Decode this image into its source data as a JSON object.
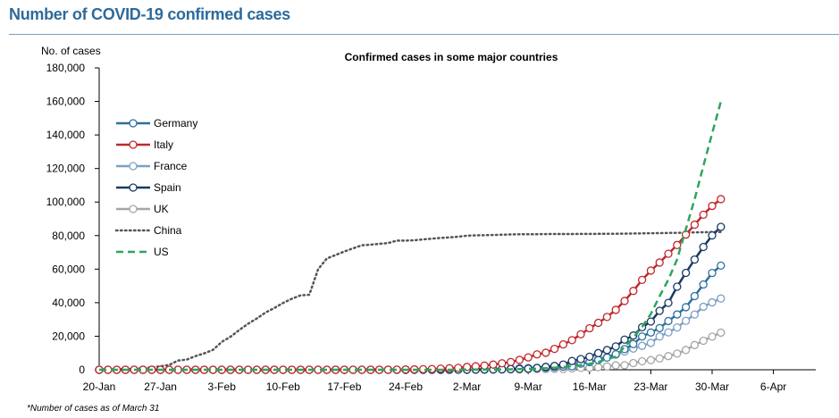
{
  "header": {
    "title": "Number of COVID-19 confirmed cases"
  },
  "footnote": "*Number of cases as of March 31",
  "chart_data": {
    "type": "line",
    "title": "Confirmed cases in some major countries",
    "ylabel": "No. of cases",
    "xlabel": "",
    "x_start": "20-Jan",
    "x_step": "1 day",
    "ylim": [
      0,
      180000
    ],
    "y_ticks": [
      "0",
      "20,000",
      "40,000",
      "60,000",
      "80,000",
      "100,000",
      "120,000",
      "140,000",
      "160,000",
      "180,000"
    ],
    "x_ticks": [
      "20-Jan",
      "27-Jan",
      "3-Feb",
      "10-Feb",
      "17-Feb",
      "24-Feb",
      "2-Mar",
      "9-Mar",
      "16-Mar",
      "23-Mar",
      "30-Mar",
      "6-Apr"
    ],
    "grid": false,
    "legend_position": "top-left",
    "series": [
      {
        "name": "Germany",
        "color": "#2e6f9e",
        "style": "solid-markers",
        "values": [
          0,
          0,
          0,
          0,
          0,
          0,
          0,
          0,
          1,
          4,
          4,
          5,
          7,
          8,
          10,
          12,
          12,
          12,
          13,
          14,
          14,
          14,
          16,
          16,
          16,
          16,
          16,
          16,
          16,
          16,
          16,
          16,
          16,
          16,
          16,
          16,
          16,
          18,
          21,
          26,
          53,
          66,
          117,
          130,
          159,
          196,
          262,
          482,
          670,
          799,
          1040,
          1176,
          1457,
          1908,
          2078,
          3675,
          4585,
          5795,
          7272,
          9257,
          12327,
          15320,
          19848,
          22213,
          24873,
          29056,
          32986,
          37323,
          43938,
          50871,
          57695,
          62095
        ]
      },
      {
        "name": "Italy",
        "color": "#c0282d",
        "style": "solid-markers",
        "values": [
          0,
          0,
          0,
          0,
          0,
          0,
          0,
          0,
          0,
          0,
          0,
          0,
          2,
          2,
          2,
          2,
          2,
          2,
          2,
          3,
          3,
          3,
          3,
          3,
          3,
          3,
          3,
          3,
          3,
          3,
          3,
          3,
          3,
          20,
          62,
          155,
          229,
          322,
          453,
          655,
          888,
          1128,
          1694,
          2036,
          2502,
          3089,
          3858,
          4636,
          5883,
          7375,
          9172,
          10149,
          12462,
          15113,
          17660,
          21157,
          24747,
          27980,
          31506,
          35713,
          41035,
          47021,
          53578,
          59138,
          63927,
          69176,
          74386,
          80589,
          86498,
          92472,
          97689,
          101739
        ]
      },
      {
        "name": "France",
        "color": "#7f9fc4",
        "style": "solid-markers",
        "values": [
          0,
          0,
          0,
          0,
          0,
          3,
          3,
          4,
          5,
          5,
          5,
          6,
          6,
          6,
          6,
          6,
          6,
          6,
          6,
          11,
          11,
          11,
          11,
          11,
          11,
          11,
          12,
          12,
          12,
          12,
          12,
          12,
          12,
          12,
          12,
          12,
          12,
          12,
          18,
          38,
          57,
          100,
          130,
          191,
          204,
          288,
          380,
          656,
          957,
          1134,
          1217,
          1792,
          2289,
          2289,
          3672,
          4480,
          4513,
          6650,
          7652,
          9043,
          10871,
          12612,
          14282,
          16018,
          19856,
          22304,
          25233,
          29155,
          32964,
          37575,
          40174,
          42500
        ]
      },
      {
        "name": "Spain",
        "color": "#1b3a63",
        "style": "solid-markers",
        "values": [
          0,
          0,
          0,
          0,
          0,
          0,
          0,
          0,
          0,
          0,
          0,
          0,
          1,
          1,
          1,
          1,
          1,
          1,
          1,
          1,
          1,
          2,
          2,
          2,
          2,
          2,
          2,
          2,
          2,
          2,
          2,
          2,
          2,
          2,
          2,
          2,
          6,
          13,
          15,
          32,
          45,
          66,
          84,
          120,
          165,
          222,
          259,
          400,
          500,
          673,
          1073,
          1695,
          2277,
          3146,
          5232,
          6391,
          7798,
          9942,
          11748,
          13910,
          17963,
          20410,
          25374,
          28768,
          35136,
          39885,
          49515,
          57786,
          65719,
          73235,
          80110,
          85195
        ]
      },
      {
        "name": "UK",
        "color": "#a6a6a6",
        "style": "solid-markers",
        "values": [
          0,
          0,
          0,
          0,
          0,
          0,
          0,
          0,
          0,
          0,
          0,
          0,
          2,
          2,
          2,
          2,
          2,
          2,
          2,
          3,
          3,
          3,
          3,
          3,
          4,
          8,
          8,
          9,
          9,
          9,
          9,
          9,
          9,
          9,
          9,
          9,
          9,
          13,
          13,
          15,
          20,
          23,
          36,
          40,
          51,
          87,
          116,
          164,
          207,
          274,
          322,
          384,
          459,
          459,
          802,
          1144,
          1145,
          1551,
          1960,
          2642,
          2716,
          4014,
          5067,
          5745,
          6726,
          8164,
          9640,
          11812,
          14745,
          17312,
          19780,
          22141
        ]
      },
      {
        "name": "China",
        "color": "#555555",
        "style": "dotted",
        "values": [
          200,
          278,
          440,
          548,
          643,
          920,
          1406,
          2075,
          2877,
          5509,
          6087,
          8141,
          9802,
          11891,
          16630,
          19716,
          23707,
          27440,
          30587,
          34110,
          36814,
          39829,
          42354,
          44386,
          44759,
          59895,
          66358,
          68413,
          70513,
          72434,
          74211,
          74619,
          75077,
          75550,
          77001,
          77022,
          77241,
          77754,
          78166,
          78600,
          78928,
          79356,
          79932,
          80136,
          80261,
          80386,
          80537,
          80690,
          80770,
          80823,
          80860,
          80887,
          80921,
          80932,
          80945,
          80977,
          81003,
          81033,
          81058,
          81102,
          81156,
          81250,
          81305,
          81435,
          81498,
          81591,
          81661,
          81782,
          81897,
          81999,
          82122,
          82198
        ]
      },
      {
        "name": "US",
        "color": "#2ea55a",
        "style": "dashed",
        "values": [
          0,
          1,
          1,
          1,
          2,
          2,
          5,
          5,
          5,
          5,
          6,
          7,
          8,
          8,
          11,
          11,
          11,
          12,
          12,
          12,
          12,
          12,
          13,
          13,
          13,
          13,
          13,
          13,
          13,
          14,
          15,
          15,
          15,
          15,
          15,
          15,
          15,
          15,
          16,
          16,
          24,
          30,
          74,
          98,
          118,
          149,
          217,
          262,
          402,
          518,
          583,
          959,
          1281,
          1663,
          2179,
          2727,
          3499,
          4632,
          6421,
          7786,
          13680,
          19101,
          25493,
          33276,
          43847,
          53740,
          65778,
          83836,
          101657,
          121478,
          140886,
          160000
        ]
      }
    ]
  }
}
